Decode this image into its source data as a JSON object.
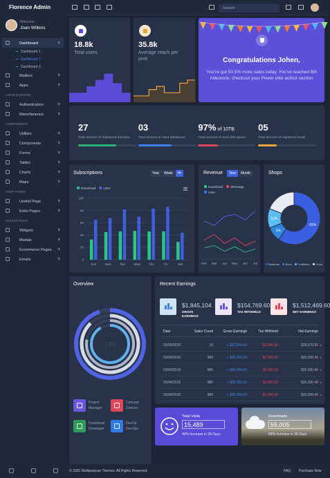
{
  "topbar": {
    "brand": "Florence Admin",
    "search_placeholder": "Search"
  },
  "user": {
    "greeting": "Welcome",
    "name": "Joan Wilkins"
  },
  "menu": {
    "items": [
      "Dashboard",
      "Mailbox",
      "Apps"
    ],
    "submenu": [
      "Dashboard 1",
      "Dashboard 2",
      "Dashboard 3"
    ]
  },
  "menu_sections": [
    {
      "heading": "LOGIN & ERROR",
      "items": [
        "Authentication",
        "Miscellaneous"
      ]
    },
    {
      "heading": "COMPONENTS",
      "items": [
        "Utilities",
        "Components",
        "Forms",
        "Tables",
        "Charts",
        "Maps"
      ]
    },
    {
      "heading": "USER PAGES",
      "items": [
        "Usefull Page",
        "Extra Pages"
      ]
    },
    {
      "heading": "COLLECTIONS",
      "items": [
        "Widgets",
        "Modals",
        "Ecommerce Pages",
        "Emails"
      ]
    }
  ],
  "cards": [
    {
      "value": "18.8k",
      "label": "Total users",
      "color": "#5b4bd6",
      "spark": {
        "type": "step",
        "values": [
          3,
          3,
          5,
          7,
          9,
          6,
          3
        ],
        "ylim": [
          0,
          10
        ],
        "color": "#5b4bd6"
      }
    },
    {
      "value": "35.8k",
      "label": "Average reach per post",
      "color": "#e8a33d",
      "spark": {
        "type": "step",
        "values": [
          2,
          2,
          4,
          5,
          3,
          3,
          6,
          7
        ],
        "ylim": [
          0,
          10
        ],
        "color": "#e8a33d",
        "fill": "#4a3f34"
      }
    }
  ],
  "congrats": {
    "title": "Congratulations Johen,",
    "text": "You've got 50.5% more sales today. You've reached 8th milestone, checkout your Power elite author section"
  },
  "stats": [
    {
      "value": "27",
      "label": "Total amount of registered domains",
      "progress": 66,
      "color": "#2bb673"
    },
    {
      "value": "03",
      "label": "Total amount of used databases",
      "progress": 58,
      "color": "#3b82f6"
    },
    {
      "value": "97%",
      "suffix": "of 10TB",
      "label": "Total amount of used disk space",
      "progress": 35,
      "color": "#e0455a"
    },
    {
      "value": "05",
      "label": "Total amount of registered email",
      "progress": 33,
      "color": "#f2a73b"
    }
  ],
  "subscriptions": {
    "type": "bar",
    "title": "Subscriptions",
    "tabs": [
      "Year",
      "Week",
      "Hr"
    ],
    "active_tab": 2,
    "categories": [
      "Sun",
      "Mon",
      "Tue",
      "Wed",
      "Thu",
      "Fri",
      "Sat"
    ],
    "series": [
      {
        "name": "Download",
        "color": "#2bc48a",
        "values": [
          33,
          45,
          46,
          47,
          46,
          46,
          29
        ]
      },
      {
        "name": "User",
        "color": "#3f5ee0",
        "values": [
          65,
          68,
          82,
          70,
          83,
          86,
          44
        ]
      }
    ],
    "ylim": [
      0,
      100
    ],
    "yticks": [
      0,
      20,
      40,
      60,
      80,
      100
    ],
    "grid": true
  },
  "revenue": {
    "type": "line",
    "title": "Revenue",
    "tabs": [
      "Year",
      "Month"
    ],
    "active_tab": 0,
    "categories": [
      "Feb",
      "Mar",
      "Apr",
      "May",
      "Jun",
      "Jul"
    ],
    "series": [
      {
        "name": "Download",
        "color": "#2bc48a",
        "values": [
          20,
          24,
          14,
          22,
          12,
          18
        ]
      },
      {
        "name": "Message",
        "color": "#e0455a",
        "values": [
          34,
          44,
          28,
          38,
          24,
          32
        ]
      },
      {
        "name": "User",
        "color": "#4a6cf0",
        "values": [
          68,
          60,
          76,
          80,
          70,
          86
        ]
      }
    ],
    "ylim": [
      0,
      100
    ]
  },
  "shops": {
    "type": "pie",
    "title": "Shops",
    "categories": [
      "Bananas",
      "Boon",
      "Craftimen",
      "Coral"
    ],
    "values": [
      60,
      9,
      12,
      19
    ],
    "value_labels": [
      "60%",
      "9%",
      "12%",
      null
    ],
    "colors": [
      "#3a5fe0",
      "#2f86dd",
      "#5bbdf0",
      "#e8edf5"
    ],
    "donut": true
  },
  "overview": {
    "title": "Overview",
    "center": "249",
    "rings": {
      "values": [
        95,
        88,
        78,
        92
      ],
      "colors": [
        "#5063e2",
        "#d5dbe7",
        "#aab4c6",
        "#5fb0ec"
      ]
    },
    "team": [
      {
        "title": "Project",
        "subtitle": "Manager",
        "color": "#6a56e0"
      },
      {
        "title": "Concept",
        "subtitle": "Director",
        "color": "#e0455a"
      },
      {
        "title": "Functional",
        "subtitle": "Developer",
        "color": "#2e9a57"
      },
      {
        "title": "DevOp",
        "subtitle": "DevOps",
        "color": "#2f7ae5"
      }
    ]
  },
  "earnings": {
    "title": "Recent Earnings",
    "stats": [
      {
        "value": "$1,845,104",
        "label": "GROSS EARNINGS",
        "color": "#3f86d9",
        "bg": "#cfe3f7"
      },
      {
        "value": "$154,769.60",
        "label": "TAX WITHHELD",
        "color": "#6a56e0",
        "bg": "#ebe5f7"
      },
      {
        "value": "$1,512,469.60",
        "label": "NET EARNINGS",
        "color": "#e0455a",
        "bg": "#fbe3e6"
      }
    ],
    "columns": [
      "Date",
      "Sales Count",
      "Gross Earnings",
      "Tax Withheld",
      "Net Earnings"
    ],
    "rows": [
      [
        "03/05/2018",
        "10",
        "+ $32,556.00",
        "- $2,580.90",
        "$28,670.90"
      ],
      [
        "03/04/2018",
        "980",
        "+ $30,556.00",
        "- $2,580.90",
        "$26,930.40"
      ],
      [
        "03/04/2018",
        "980",
        "+ $30,556.00",
        "- $2,580.90",
        "$26,930.40"
      ],
      [
        "03/04/2018",
        "980",
        "+ $30,556.00",
        "- $2,580.90",
        "$26,930.40"
      ],
      [
        "03/04/2018",
        "980",
        "+ $30,556.00",
        "- $2,580.90",
        "$26,930.40"
      ]
    ]
  },
  "visits": {
    "title": "Total Visits",
    "value": "15,489",
    "note": "40% Increase in 28 Days"
  },
  "downloads": {
    "title": "Downloads",
    "value": "55,005",
    "note": "85% Increase in 28 Days"
  },
  "footer": {
    "copyright": "© 2020 Multipurpose Themes. All Rights Reserved.",
    "links": [
      "FAQ",
      "Purchase Now"
    ]
  }
}
